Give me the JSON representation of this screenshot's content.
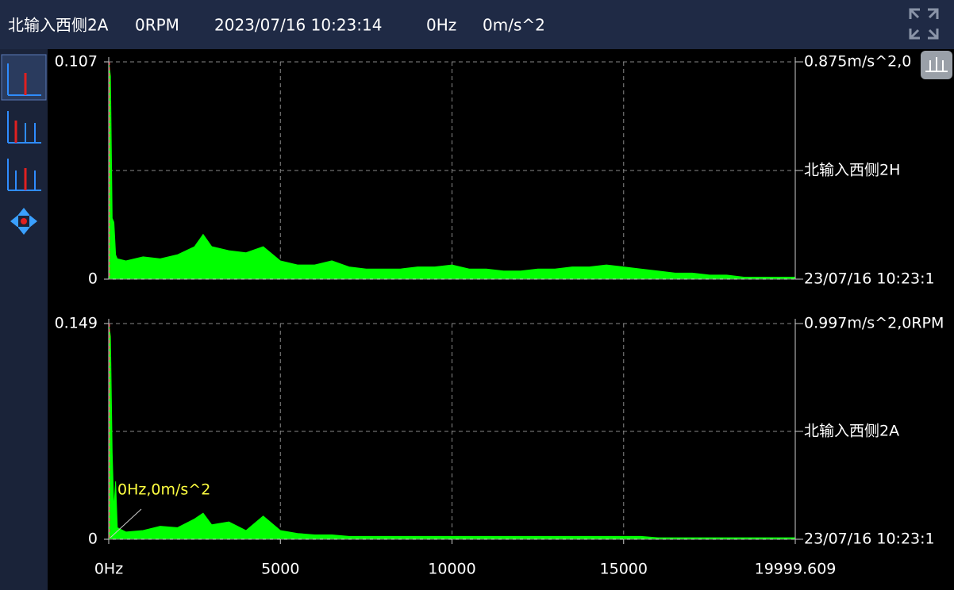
{
  "header": {
    "channel": "北输入西侧2A",
    "rpm": "0RPM",
    "time": "2023/07/16 10:23:14",
    "freq": "0Hz",
    "accel": "0m/s^2"
  },
  "chart_data": [
    {
      "type": "area",
      "color": "#00ff00",
      "xlim": [
        0,
        19999.609
      ],
      "ylim": [
        0,
        0.107
      ],
      "yticks": [
        0,
        0.107
      ],
      "max_label": "0.875m/s^2,0",
      "channel": "北输入西侧2H",
      "time_label": "23/07/16 10:23:1",
      "x": [
        0,
        50,
        100,
        150,
        200,
        250,
        500,
        1000,
        1500,
        2000,
        2500,
        2750,
        3000,
        3500,
        4000,
        4500,
        5000,
        5500,
        6000,
        6500,
        7000,
        7500,
        8000,
        8500,
        9000,
        9500,
        10000,
        10500,
        11000,
        11500,
        12000,
        12500,
        13000,
        13500,
        14000,
        14500,
        15000,
        15500,
        16000,
        16500,
        17000,
        17500,
        18000,
        18500,
        19000,
        19500,
        19999.609
      ],
      "values": [
        0.107,
        0.1,
        0.03,
        0.028,
        0.012,
        0.01,
        0.009,
        0.011,
        0.01,
        0.012,
        0.016,
        0.022,
        0.016,
        0.014,
        0.013,
        0.016,
        0.009,
        0.007,
        0.007,
        0.009,
        0.006,
        0.005,
        0.005,
        0.005,
        0.006,
        0.006,
        0.007,
        0.005,
        0.005,
        0.004,
        0.004,
        0.005,
        0.005,
        0.006,
        0.006,
        0.007,
        0.006,
        0.005,
        0.004,
        0.003,
        0.003,
        0.002,
        0.002,
        0.001,
        0.001,
        0.001,
        0.001
      ]
    },
    {
      "type": "area",
      "color": "#00ff00",
      "xlim": [
        0,
        19999.609
      ],
      "xticks": [
        {
          "value": 0,
          "label": "0Hz"
        },
        5000,
        10000,
        15000,
        19999.609
      ],
      "ylim": [
        0,
        0.149
      ],
      "yticks": [
        0,
        0.149
      ],
      "max_label": "0.997m/s^2,0RPM",
      "channel": "北输入西侧2A",
      "time_label": "23/07/16 10:23:1",
      "cursor_label": "0Hz,0m/s^2",
      "x": [
        0,
        50,
        100,
        150,
        200,
        250,
        500,
        1000,
        1500,
        2000,
        2500,
        2750,
        3000,
        3500,
        4000,
        4500,
        5000,
        5500,
        6000,
        6500,
        7000,
        7500,
        8000,
        8500,
        9000,
        9500,
        10000,
        10500,
        11000,
        11500,
        12000,
        12500,
        13000,
        13500,
        14000,
        14500,
        15000,
        15500,
        16000,
        16500,
        17000,
        17500,
        18000,
        18500,
        19000,
        19500,
        19999.609
      ],
      "values": [
        0.149,
        0.14,
        0.06,
        0.02,
        0.04,
        0.008,
        0.005,
        0.006,
        0.009,
        0.008,
        0.014,
        0.018,
        0.01,
        0.012,
        0.006,
        0.016,
        0.006,
        0.004,
        0.003,
        0.003,
        0.002,
        0.002,
        0.002,
        0.002,
        0.002,
        0.002,
        0.002,
        0.002,
        0.002,
        0.002,
        0.002,
        0.002,
        0.002,
        0.002,
        0.002,
        0.002,
        0.002,
        0.002,
        0.001,
        0.001,
        0.001,
        0.001,
        0.001,
        0.001,
        0.001,
        0.001,
        0.001
      ]
    }
  ]
}
